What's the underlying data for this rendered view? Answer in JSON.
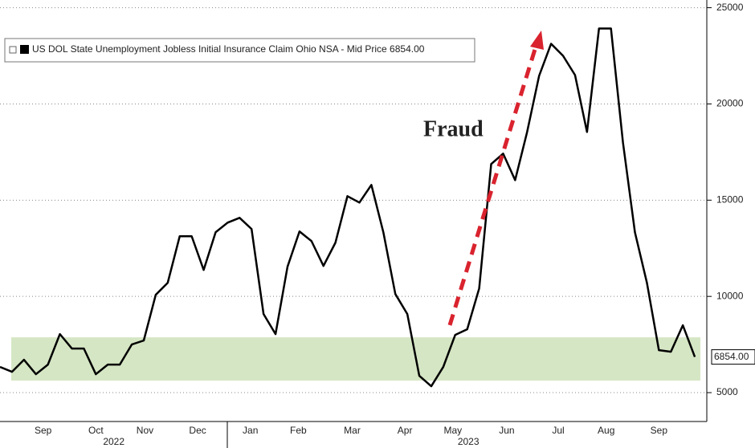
{
  "chart_data": {
    "type": "line",
    "series": [
      {
        "name": "US DOL State Unemployment Jobless Initial Insurance Claim Ohio NSA - Mid Price 6854.00",
        "color": "#000000",
        "values": [
          6333,
          6083,
          6708,
          5958,
          6458,
          8042,
          7292,
          7292,
          5958,
          6458,
          6458,
          7500,
          7708,
          10083,
          10708,
          13125,
          13125,
          11375,
          13333,
          13833,
          14083,
          13500,
          9083,
          8042,
          11542,
          13375,
          12875,
          11583,
          12792,
          15208,
          14875,
          15792,
          13333,
          10125,
          9083,
          5875,
          5333,
          6333,
          8000,
          8292,
          10417,
          16875,
          17417,
          16042,
          18542,
          21458,
          23125,
          22500,
          21500,
          18542,
          23917,
          23917,
          18000,
          13333,
          10708,
          7208,
          7125,
          8500,
          6854
        ],
        "last_label": "6854.00"
      }
    ],
    "xlim": [
      0,
      59
    ],
    "ylim": [
      3500,
      25400
    ],
    "yticks": [
      5000,
      10000,
      15000,
      20000,
      25000
    ],
    "xticks": [
      {
        "value": 3.6,
        "label": "Sep"
      },
      {
        "value": 8.0,
        "label": "Oct"
      },
      {
        "value": 12.1,
        "label": "Nov"
      },
      {
        "value": 16.5,
        "label": "Dec"
      },
      {
        "value": 20.9,
        "label": "Jan"
      },
      {
        "value": 24.9,
        "label": "Feb"
      },
      {
        "value": 29.4,
        "label": "Mar"
      },
      {
        "value": 33.8,
        "label": "Apr"
      },
      {
        "value": 37.8,
        "label": "May"
      },
      {
        "value": 42.3,
        "label": "Jun"
      },
      {
        "value": 46.6,
        "label": "Jul"
      },
      {
        "value": 50.6,
        "label": "Aug"
      },
      {
        "value": 55.0,
        "label": "Sep"
      }
    ],
    "year_ticks": [
      {
        "value": 9.5,
        "label": "2022"
      },
      {
        "value": 39.1,
        "label": "2023"
      }
    ],
    "band": {
      "range": [
        5625,
        7875
      ],
      "color": "#d5e6c4"
    },
    "annotation": {
      "text": "Fraud",
      "color": "#d9232e"
    },
    "grid": true
  }
}
